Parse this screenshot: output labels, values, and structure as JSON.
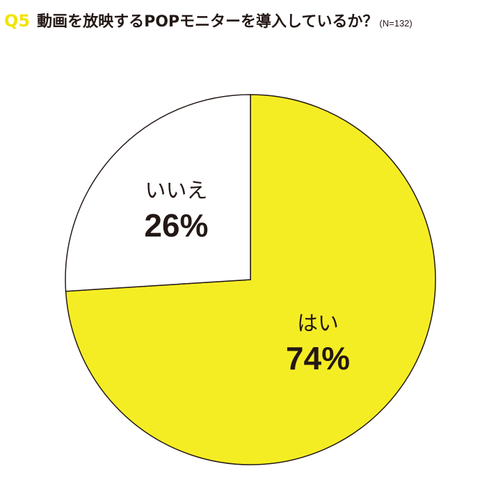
{
  "question": {
    "number": "Q5",
    "title": "動画を放映するPOPモニターを導入しているか？",
    "sample": "(N=132)"
  },
  "colors": {
    "accent": "#f0e400",
    "pie_yes": "#f5ed24",
    "pie_no": "#ffffff",
    "stroke": "#231815",
    "text": "#231815"
  },
  "chart_data": {
    "type": "pie",
    "slices": [
      {
        "label": "はい",
        "value": 74,
        "display": "74%"
      },
      {
        "label": "いいえ",
        "value": 26,
        "display": "26%"
      }
    ],
    "total_n": 132
  }
}
